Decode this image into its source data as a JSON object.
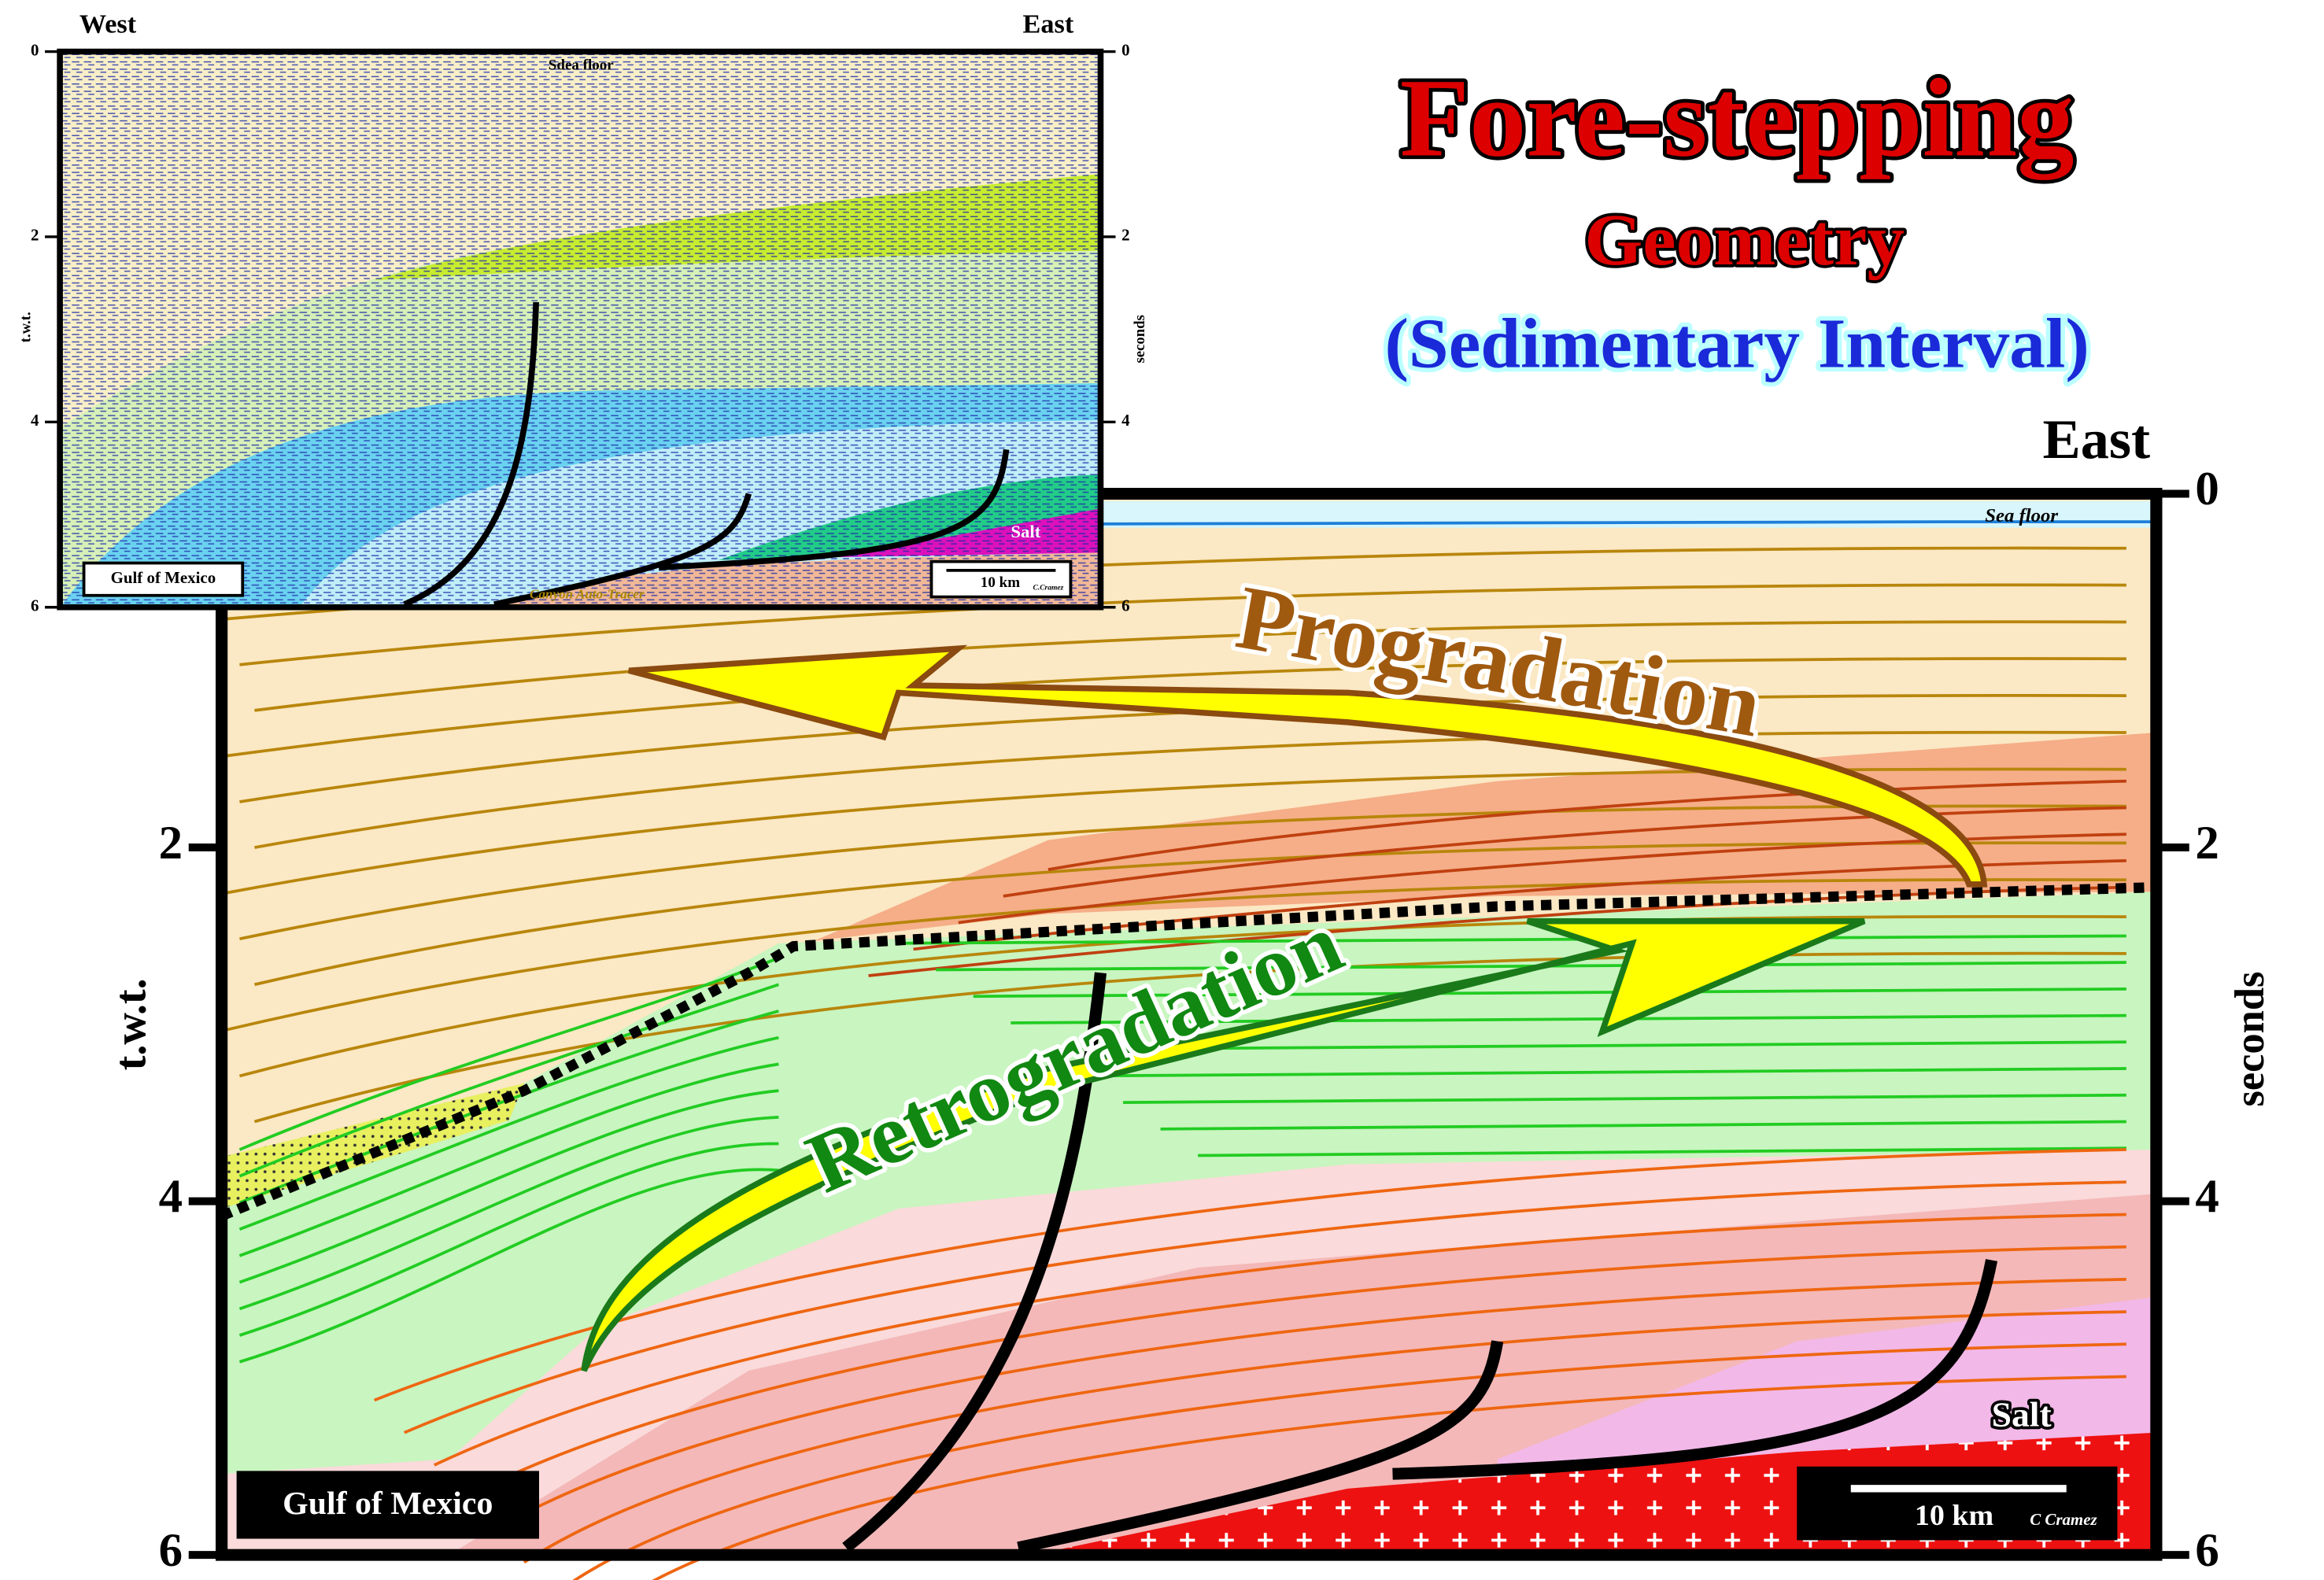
{
  "title": "Fore-stepping",
  "subtitle": "Geometry",
  "caption": "(Sedimentary Interval)",
  "inset": {
    "west": "West",
    "east": "East",
    "left_axis_label": "t.w.t.",
    "right_axis_label": "seconds",
    "ticks": [
      0,
      2,
      4,
      6
    ],
    "sea_floor": "Sdea floor",
    "location": "Gulf of Mexico",
    "scale": "10 km",
    "credit": "C.Cramez",
    "salt": "Salt",
    "canyon": "Canyon Auto-Tracer"
  },
  "main": {
    "east": "East",
    "left_axis_label": "t.w.t.",
    "right_axis_label": "seconds",
    "ticks": [
      0,
      2,
      4,
      6
    ],
    "sea_floor": "Sea floor",
    "progradation": "Progradation",
    "retrogradation": "Retrogradation",
    "salt": "Salt",
    "location": "Gulf of Mexico",
    "scale": "10 km",
    "credit": "C Cramez"
  }
}
